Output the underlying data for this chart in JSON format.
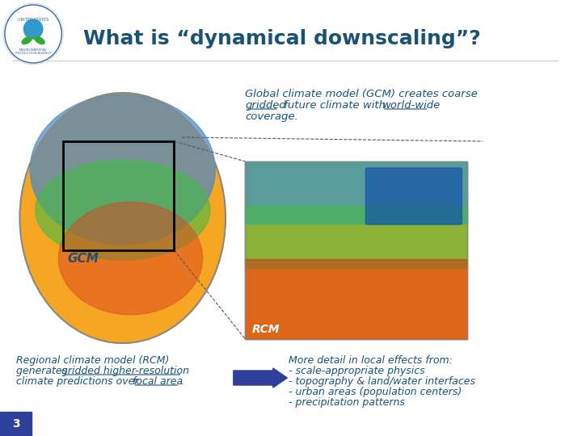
{
  "title": "What is “dynamical downscaling”?",
  "title_color": "#1a5276",
  "title_fontsize": 18,
  "background_color": "#ffffff",
  "gcm_text": "GCM",
  "rcm_text": "RCM",
  "gcm_label_color": "#1a5276",
  "rcm_label_color": "#1a5276",
  "gcm_desc_line1": "Global climate model (GCM) creates coarse",
  "gcm_desc_underline1": "gridded",
  "gcm_desc_plain2": " future climate with ",
  "gcm_desc_underline2": "world-wide",
  "gcm_desc_line3": "coverage.",
  "rcm_desc_line1": "Regional climate model (RCM)",
  "rcm_desc_line2_plain": "generates ",
  "rcm_desc_line2_underline": "gridded higher-resolution",
  "rcm_desc_line3_plain": "climate predictions over ",
  "rcm_desc_line3_underline": "focal area",
  "rcm_desc_line3_end": ".",
  "detail_title": "More detail in local effects from:",
  "detail_items": [
    "- scale-appropriate physics",
    "- topography & land/water interfaces",
    "- urban areas (population centers)",
    "- precipitation patterns"
  ],
  "text_color": "#1a5276",
  "slide_number": "3",
  "slide_num_bg": "#2e4099",
  "slide_num_color": "#ffffff",
  "arrow_color": "#2e4099"
}
